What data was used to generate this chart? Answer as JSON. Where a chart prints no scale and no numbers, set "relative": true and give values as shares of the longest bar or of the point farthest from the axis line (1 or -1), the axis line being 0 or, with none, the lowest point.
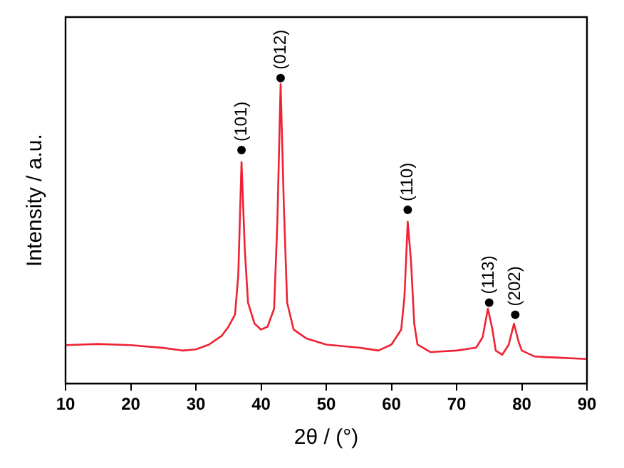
{
  "chart_data": {
    "type": "line",
    "xlabel": "2θ / (°)",
    "ylabel": "Intensity / a.u.",
    "relative": true,
    "xlim": [
      10,
      90
    ],
    "xticks": [
      10,
      20,
      30,
      40,
      50,
      60,
      70,
      80,
      90
    ],
    "grid": false,
    "legend": false,
    "marker": "none",
    "line_style": "solid",
    "series": [
      {
        "color": "#ee2233",
        "x": [
          10,
          15,
          20,
          25,
          28,
          30,
          32,
          34,
          35,
          36,
          36.5,
          37,
          37.5,
          38,
          39,
          40,
          41,
          42,
          42.5,
          43,
          43.5,
          44,
          45,
          47,
          50,
          55,
          58,
          60,
          61.5,
          62,
          62.5,
          63,
          63.5,
          64,
          66,
          70,
          73,
          74,
          74.8,
          75.5,
          76,
          77,
          78,
          78.8,
          79.5,
          80,
          82,
          85,
          90
        ],
        "values": [
          0.128,
          0.132,
          0.128,
          0.119,
          0.11,
          0.114,
          0.13,
          0.16,
          0.19,
          0.23,
          0.36,
          0.74,
          0.45,
          0.27,
          0.2,
          0.18,
          0.19,
          0.25,
          0.54,
          1.0,
          0.59,
          0.27,
          0.18,
          0.15,
          0.13,
          0.12,
          0.11,
          0.13,
          0.18,
          0.29,
          0.54,
          0.41,
          0.2,
          0.13,
          0.105,
          0.11,
          0.12,
          0.155,
          0.25,
          0.18,
          0.11,
          0.096,
          0.13,
          0.2,
          0.14,
          0.11,
          0.09,
          0.087,
          0.082
        ]
      }
    ],
    "annotations": [
      {
        "text": "(101)",
        "x": 37,
        "y": 0.78
      },
      {
        "text": "(012)",
        "x": 43,
        "y": 1.02
      },
      {
        "text": "(110)",
        "x": 62.5,
        "y": 0.58
      },
      {
        "text": "(113)",
        "x": 75,
        "y": 0.27
      },
      {
        "text": "(202)",
        "x": 79,
        "y": 0.23
      }
    ]
  }
}
